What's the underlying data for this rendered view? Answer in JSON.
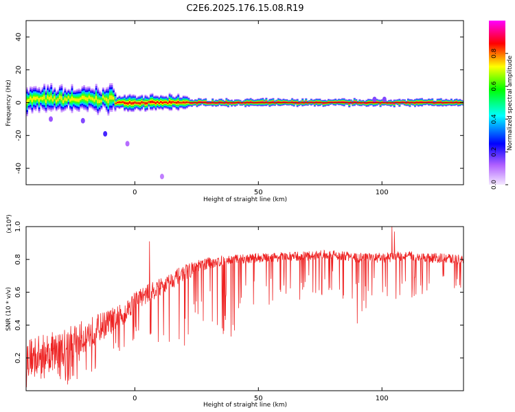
{
  "title": "C2E6.2025.176.15.08.R19",
  "chart_data": [
    {
      "type": "heatmap",
      "xlabel": "Height of straight line (km)",
      "ylabel": "Frequency (Hz)",
      "xlim": [
        -44,
        133
      ],
      "ylim": [
        -50,
        50
      ],
      "xticks": [
        0,
        50,
        100
      ],
      "xtick_labels": [
        "0",
        "50",
        "100"
      ],
      "yticks": [
        -40,
        -20,
        0,
        20,
        40
      ],
      "ytick_labels": [
        "-40",
        "-20",
        "0",
        "20",
        "40"
      ],
      "colorbar": {
        "label": "Normalized spectral amplitude",
        "range": [
          0,
          1
        ],
        "ticks": [
          0.0,
          0.2,
          0.4,
          0.6,
          0.8
        ],
        "tick_labels": [
          "0.0",
          "0.2",
          "0.4",
          "0.6",
          "0.8"
        ],
        "colormap": "rainbow",
        "stops": [
          "#f4e8ff",
          "#b060ff",
          "#0000ff",
          "#00ffff",
          "#00ff00",
          "#ffff00",
          "#ff0000",
          "#ff00ff"
        ]
      },
      "band": {
        "x_start": -44,
        "x_end": 133,
        "center_frequency": 0,
        "segments": [
          {
            "x": [
              -44,
              -8
            ],
            "freq_center": 2,
            "half_width": 5,
            "peak_amplitude": 0.75
          },
          {
            "x": [
              -8,
              22
            ],
            "freq_center": 0,
            "half_width": 3,
            "peak_amplitude": 0.9
          },
          {
            "x": [
              22,
              133
            ],
            "freq_center": 0,
            "half_width": 1.5,
            "peak_amplitude": 1.0
          }
        ],
        "scatter": [
          {
            "x": -12,
            "freq": -19,
            "amplitude": 0.15
          },
          {
            "x": -21,
            "freq": -11,
            "amplitude": 0.1
          },
          {
            "x": -34,
            "freq": -10,
            "amplitude": 0.08
          },
          {
            "x": -3,
            "freq": -25,
            "amplitude": 0.05
          },
          {
            "x": 11,
            "freq": -45,
            "amplitude": 0.03
          },
          {
            "x": 97,
            "freq": 2,
            "amplitude": 0.1
          },
          {
            "x": 101,
            "freq": 2,
            "amplitude": 0.1
          }
        ]
      }
    },
    {
      "type": "line",
      "xlabel": "Height of straight line (km)",
      "ylabel": "SNR (10 * v/v)",
      "y_multiplier": "(x10⁴)",
      "xlim": [
        -44,
        133
      ],
      "ylim": [
        0,
        1.0
      ],
      "xticks": [
        0,
        50,
        100
      ],
      "xtick_labels": [
        "0",
        "50",
        "100"
      ],
      "yticks": [
        0.2,
        0.4,
        0.6,
        0.8,
        1.0
      ],
      "ytick_labels": [
        "0.2",
        "0.4",
        "0.6",
        "0.8",
        "1.0"
      ],
      "series": [
        {
          "color": "#ee2222",
          "envelope": {
            "x": [
              -44,
              -30,
              -15,
              -5,
              0,
              10,
              20,
              30,
              40,
              50,
              70,
              80,
              90,
              100,
              110,
              120,
              133
            ],
            "baseline": [
              0.2,
              0.25,
              0.38,
              0.46,
              0.55,
              0.63,
              0.72,
              0.78,
              0.8,
              0.81,
              0.82,
              0.83,
              0.81,
              0.81,
              0.82,
              0.81,
              0.8
            ],
            "noise": [
              0.2,
              0.2,
              0.15,
              0.12,
              0.1,
              0.09,
              0.08,
              0.06,
              0.05,
              0.05,
              0.05,
              0.05,
              0.05,
              0.05,
              0.05,
              0.05,
              0.05
            ],
            "dip_floor": [
              0.02,
              0.02,
              0.08,
              0.18,
              0.3,
              0.22,
              0.27,
              0.35,
              0.32,
              0.5,
              0.55,
              0.6,
              0.45,
              0.55,
              0.55,
              0.55,
              0.6
            ]
          },
          "notable_points": [
            {
              "x": 6,
              "y": 0.91
            },
            {
              "x": 39,
              "y": 0.33
            },
            {
              "x": 90,
              "y": 0.41
            },
            {
              "x": 104,
              "y": 1.0
            },
            {
              "x": 105,
              "y": 0.97
            }
          ]
        }
      ]
    }
  ]
}
